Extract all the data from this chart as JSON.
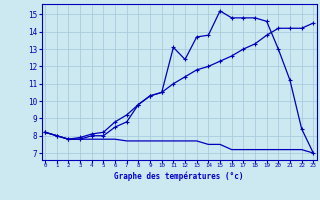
{
  "background_color": "#cce8f0",
  "grid_color": "#aaccdd",
  "line_color": "#0000bb",
  "xlabel": "Graphe des températures (°c)",
  "xlabel_color": "#0000cc",
  "yticks": [
    7,
    8,
    9,
    10,
    11,
    12,
    13,
    14,
    15
  ],
  "xticks": [
    0,
    1,
    2,
    3,
    4,
    5,
    6,
    7,
    8,
    9,
    10,
    11,
    12,
    13,
    14,
    15,
    16,
    17,
    18,
    19,
    20,
    21,
    22,
    23
  ],
  "xlim": [
    -0.3,
    23.3
  ],
  "ylim": [
    6.6,
    15.6
  ],
  "line1_x": [
    0,
    1,
    2,
    3,
    4,
    5,
    6,
    7,
    8,
    9,
    10,
    11,
    12,
    13,
    14,
    15,
    16,
    17,
    18,
    19,
    20,
    21,
    22,
    23
  ],
  "line1_y": [
    8.2,
    8.0,
    7.8,
    7.8,
    8.0,
    8.0,
    8.5,
    8.8,
    9.8,
    10.3,
    10.5,
    13.1,
    12.4,
    13.7,
    13.8,
    15.2,
    14.8,
    14.8,
    14.8,
    14.6,
    13.0,
    11.2,
    8.4,
    7.0
  ],
  "line2_x": [
    0,
    1,
    2,
    3,
    4,
    5,
    6,
    7,
    8,
    9,
    10,
    11,
    12,
    13,
    14,
    15,
    16,
    17,
    18,
    19,
    20,
    21,
    22,
    23
  ],
  "line2_y": [
    8.2,
    8.0,
    7.8,
    7.9,
    8.1,
    8.2,
    8.8,
    9.2,
    9.8,
    10.3,
    10.5,
    11.0,
    11.4,
    11.8,
    12.0,
    12.3,
    12.6,
    13.0,
    13.3,
    13.8,
    14.2,
    14.2,
    14.2,
    14.5
  ],
  "line3_x": [
    0,
    1,
    2,
    3,
    4,
    5,
    6,
    7,
    8,
    9,
    10,
    11,
    12,
    13,
    14,
    15,
    16,
    17,
    18,
    19,
    20,
    21,
    22,
    23
  ],
  "line3_y": [
    8.2,
    8.0,
    7.8,
    7.8,
    7.8,
    7.8,
    7.8,
    7.7,
    7.7,
    7.7,
    7.7,
    7.7,
    7.7,
    7.7,
    7.5,
    7.5,
    7.2,
    7.2,
    7.2,
    7.2,
    7.2,
    7.2,
    7.2,
    7.0
  ]
}
